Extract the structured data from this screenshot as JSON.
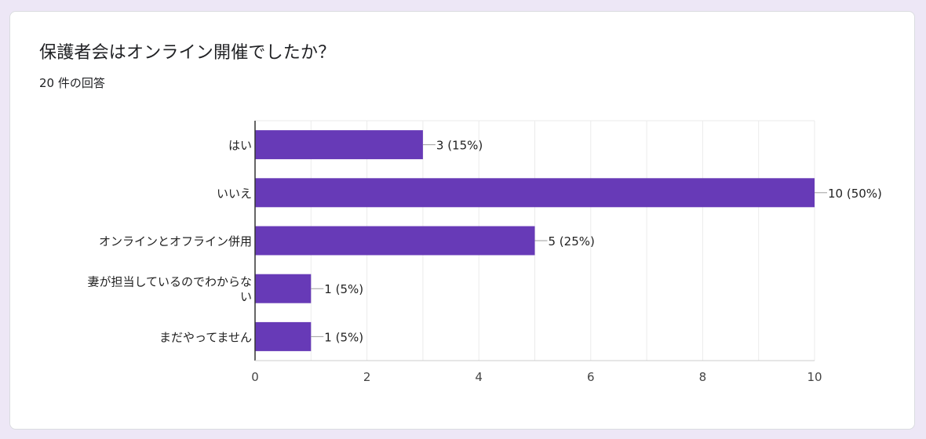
{
  "question": {
    "title": "保護者会はオンライン開催でしたか？",
    "response_count": "20 件の回答"
  },
  "colors": {
    "bar": "#673ab7",
    "grid": "#ebebeb",
    "axis": "#333333",
    "card_background": "#ede7f6"
  },
  "chart_data": {
    "type": "bar",
    "orientation": "horizontal",
    "title": "保護者会はオンライン開催でしたか？",
    "categories": [
      "はい",
      "いいえ",
      "オンラインとオフライン併用",
      "妻が担当しているのでわからない",
      "まだやってません"
    ],
    "category_label_lines": [
      [
        "はい"
      ],
      [
        "いいえ"
      ],
      [
        "オンラインとオフライン併用"
      ],
      [
        "妻が担当しているのでわからな",
        "い"
      ],
      [
        "まだやってません"
      ]
    ],
    "values": [
      3,
      10,
      5,
      1,
      1
    ],
    "data_labels": [
      "3 (15%)",
      "10 (50%)",
      "5 (25%)",
      "1 (5%)",
      "1 (5%)"
    ],
    "xlim": [
      0,
      10
    ],
    "x_ticks": [
      0,
      2,
      4,
      6,
      8,
      10
    ],
    "x_tick_labels": [
      "0",
      "2",
      "4",
      "6",
      "8",
      "10"
    ],
    "grid": true,
    "legend": "none",
    "xlabel": "",
    "ylabel": ""
  }
}
